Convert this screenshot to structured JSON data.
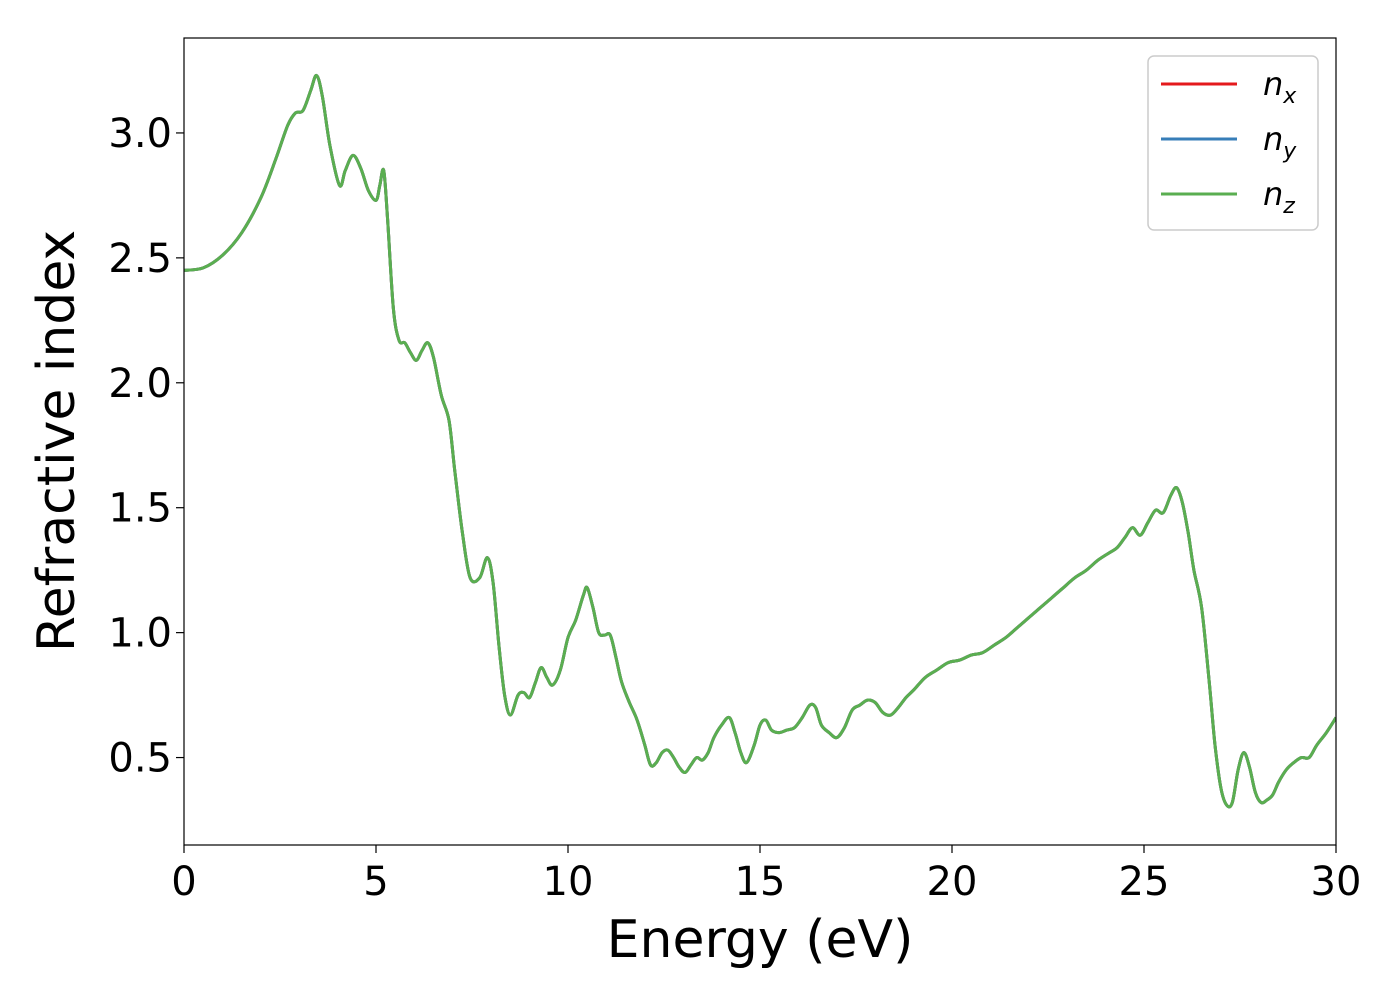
{
  "chart_data": {
    "type": "line",
    "xlabel": "Energy (eV)",
    "ylabel": "Refractive index",
    "xlim": [
      0,
      30
    ],
    "ylim": [
      0.15,
      3.38
    ],
    "x_ticks": [
      "0",
      "5",
      "10",
      "15",
      "20",
      "25",
      "30"
    ],
    "y_ticks": [
      "0.5",
      "1.0",
      "1.5",
      "2.0",
      "2.5",
      "3.0"
    ],
    "legend_position": "top-right",
    "grid": false,
    "colors": {
      "nx": "#e41a1c",
      "ny": "#377eb8",
      "nz": "#5aae50"
    },
    "legend": [
      {
        "base": "n",
        "sub": "x",
        "color": "#e41a1c"
      },
      {
        "base": "n",
        "sub": "y",
        "color": "#377eb8"
      },
      {
        "base": "n",
        "sub": "z",
        "color": "#5aae50"
      }
    ],
    "x": [
      0,
      0.5,
      1.0,
      1.5,
      2.0,
      2.4,
      2.7,
      2.9,
      3.1,
      3.3,
      3.45,
      3.6,
      3.8,
      4.05,
      4.2,
      4.4,
      4.6,
      4.8,
      5.0,
      5.1,
      5.2,
      5.3,
      5.45,
      5.6,
      5.75,
      5.9,
      6.05,
      6.2,
      6.35,
      6.5,
      6.7,
      6.9,
      7.05,
      7.25,
      7.45,
      7.7,
      7.9,
      8.05,
      8.2,
      8.35,
      8.5,
      8.7,
      8.85,
      9.0,
      9.15,
      9.3,
      9.45,
      9.6,
      9.8,
      10.0,
      10.2,
      10.4,
      10.5,
      10.65,
      10.8,
      10.95,
      11.1,
      11.25,
      11.4,
      11.6,
      11.8,
      12.0,
      12.15,
      12.3,
      12.45,
      12.6,
      12.75,
      12.9,
      13.05,
      13.2,
      13.35,
      13.5,
      13.65,
      13.8,
      14.0,
      14.2,
      14.35,
      14.5,
      14.65,
      14.85,
      15.0,
      15.15,
      15.3,
      15.5,
      15.7,
      15.9,
      16.1,
      16.3,
      16.45,
      16.6,
      16.8,
      17.0,
      17.2,
      17.4,
      17.6,
      17.8,
      18.0,
      18.2,
      18.4,
      18.6,
      18.8,
      19.0,
      19.3,
      19.6,
      19.9,
      20.2,
      20.5,
      20.8,
      21.1,
      21.4,
      21.7,
      22.0,
      22.3,
      22.6,
      22.9,
      23.2,
      23.5,
      23.8,
      24.1,
      24.3,
      24.5,
      24.7,
      24.9,
      25.1,
      25.3,
      25.5,
      25.7,
      25.85,
      26.0,
      26.15,
      26.3,
      26.5,
      26.7,
      26.85,
      27.0,
      27.15,
      27.3,
      27.45,
      27.6,
      27.75,
      27.9,
      28.05,
      28.2,
      28.35,
      28.5,
      28.7,
      28.9,
      29.1,
      29.3,
      29.5,
      29.75,
      30.0
    ],
    "series": [
      {
        "name": "n_x",
        "values": [
          2.45,
          2.46,
          2.51,
          2.6,
          2.74,
          2.9,
          3.03,
          3.08,
          3.09,
          3.17,
          3.23,
          3.15,
          2.95,
          2.79,
          2.85,
          2.91,
          2.86,
          2.77,
          2.73,
          2.79,
          2.85,
          2.66,
          2.3,
          2.17,
          2.16,
          2.12,
          2.09,
          2.13,
          2.16,
          2.1,
          1.95,
          1.85,
          1.65,
          1.4,
          1.22,
          1.22,
          1.3,
          1.2,
          0.95,
          0.75,
          0.67,
          0.75,
          0.76,
          0.74,
          0.8,
          0.86,
          0.82,
          0.79,
          0.85,
          0.98,
          1.05,
          1.15,
          1.18,
          1.1,
          1.0,
          0.99,
          0.99,
          0.9,
          0.8,
          0.72,
          0.65,
          0.55,
          0.47,
          0.48,
          0.52,
          0.53,
          0.5,
          0.46,
          0.44,
          0.47,
          0.5,
          0.49,
          0.52,
          0.58,
          0.63,
          0.66,
          0.6,
          0.52,
          0.48,
          0.55,
          0.63,
          0.65,
          0.61,
          0.6,
          0.61,
          0.62,
          0.66,
          0.71,
          0.7,
          0.63,
          0.6,
          0.58,
          0.62,
          0.69,
          0.71,
          0.73,
          0.72,
          0.68,
          0.67,
          0.7,
          0.74,
          0.77,
          0.82,
          0.85,
          0.88,
          0.89,
          0.91,
          0.92,
          0.95,
          0.98,
          1.02,
          1.06,
          1.1,
          1.14,
          1.18,
          1.22,
          1.25,
          1.29,
          1.32,
          1.34,
          1.38,
          1.42,
          1.39,
          1.44,
          1.49,
          1.48,
          1.55,
          1.58,
          1.52,
          1.4,
          1.25,
          1.1,
          0.8,
          0.55,
          0.38,
          0.31,
          0.32,
          0.45,
          0.52,
          0.46,
          0.36,
          0.32,
          0.33,
          0.35,
          0.4,
          0.45,
          0.48,
          0.5,
          0.5,
          0.55,
          0.6,
          0.66
        ]
      },
      {
        "name": "n_y",
        "values": [
          2.45,
          2.46,
          2.51,
          2.6,
          2.74,
          2.9,
          3.03,
          3.08,
          3.09,
          3.17,
          3.23,
          3.15,
          2.95,
          2.79,
          2.85,
          2.91,
          2.86,
          2.77,
          2.73,
          2.79,
          2.85,
          2.66,
          2.3,
          2.17,
          2.16,
          2.12,
          2.09,
          2.13,
          2.16,
          2.1,
          1.95,
          1.85,
          1.65,
          1.4,
          1.22,
          1.22,
          1.3,
          1.2,
          0.95,
          0.75,
          0.67,
          0.75,
          0.76,
          0.74,
          0.8,
          0.86,
          0.82,
          0.79,
          0.85,
          0.98,
          1.05,
          1.15,
          1.18,
          1.1,
          1.0,
          0.99,
          0.99,
          0.9,
          0.8,
          0.72,
          0.65,
          0.55,
          0.47,
          0.48,
          0.52,
          0.53,
          0.5,
          0.46,
          0.44,
          0.47,
          0.5,
          0.49,
          0.52,
          0.58,
          0.63,
          0.66,
          0.6,
          0.52,
          0.48,
          0.55,
          0.63,
          0.65,
          0.61,
          0.6,
          0.61,
          0.62,
          0.66,
          0.71,
          0.7,
          0.63,
          0.6,
          0.58,
          0.62,
          0.69,
          0.71,
          0.73,
          0.72,
          0.68,
          0.67,
          0.7,
          0.74,
          0.77,
          0.82,
          0.85,
          0.88,
          0.89,
          0.91,
          0.92,
          0.95,
          0.98,
          1.02,
          1.06,
          1.1,
          1.14,
          1.18,
          1.22,
          1.25,
          1.29,
          1.32,
          1.34,
          1.38,
          1.42,
          1.39,
          1.44,
          1.49,
          1.48,
          1.55,
          1.58,
          1.52,
          1.4,
          1.25,
          1.1,
          0.8,
          0.55,
          0.38,
          0.31,
          0.32,
          0.45,
          0.52,
          0.46,
          0.36,
          0.32,
          0.33,
          0.35,
          0.4,
          0.45,
          0.48,
          0.5,
          0.5,
          0.55,
          0.6,
          0.66
        ]
      },
      {
        "name": "n_z",
        "values": [
          2.45,
          2.46,
          2.51,
          2.6,
          2.74,
          2.9,
          3.03,
          3.08,
          3.09,
          3.17,
          3.23,
          3.15,
          2.95,
          2.79,
          2.85,
          2.91,
          2.86,
          2.77,
          2.73,
          2.79,
          2.85,
          2.66,
          2.3,
          2.17,
          2.16,
          2.12,
          2.09,
          2.13,
          2.16,
          2.1,
          1.95,
          1.85,
          1.65,
          1.4,
          1.22,
          1.22,
          1.3,
          1.2,
          0.95,
          0.75,
          0.67,
          0.75,
          0.76,
          0.74,
          0.8,
          0.86,
          0.82,
          0.79,
          0.85,
          0.98,
          1.05,
          1.15,
          1.18,
          1.1,
          1.0,
          0.99,
          0.99,
          0.9,
          0.8,
          0.72,
          0.65,
          0.55,
          0.47,
          0.48,
          0.52,
          0.53,
          0.5,
          0.46,
          0.44,
          0.47,
          0.5,
          0.49,
          0.52,
          0.58,
          0.63,
          0.66,
          0.6,
          0.52,
          0.48,
          0.55,
          0.63,
          0.65,
          0.61,
          0.6,
          0.61,
          0.62,
          0.66,
          0.71,
          0.7,
          0.63,
          0.6,
          0.58,
          0.62,
          0.69,
          0.71,
          0.73,
          0.72,
          0.68,
          0.67,
          0.7,
          0.74,
          0.77,
          0.82,
          0.85,
          0.88,
          0.89,
          0.91,
          0.92,
          0.95,
          0.98,
          1.02,
          1.06,
          1.1,
          1.14,
          1.18,
          1.22,
          1.25,
          1.29,
          1.32,
          1.34,
          1.38,
          1.42,
          1.39,
          1.44,
          1.49,
          1.48,
          1.55,
          1.58,
          1.52,
          1.4,
          1.25,
          1.1,
          0.8,
          0.55,
          0.38,
          0.31,
          0.32,
          0.45,
          0.52,
          0.46,
          0.36,
          0.32,
          0.33,
          0.35,
          0.4,
          0.45,
          0.48,
          0.5,
          0.5,
          0.55,
          0.6,
          0.66
        ]
      }
    ]
  }
}
